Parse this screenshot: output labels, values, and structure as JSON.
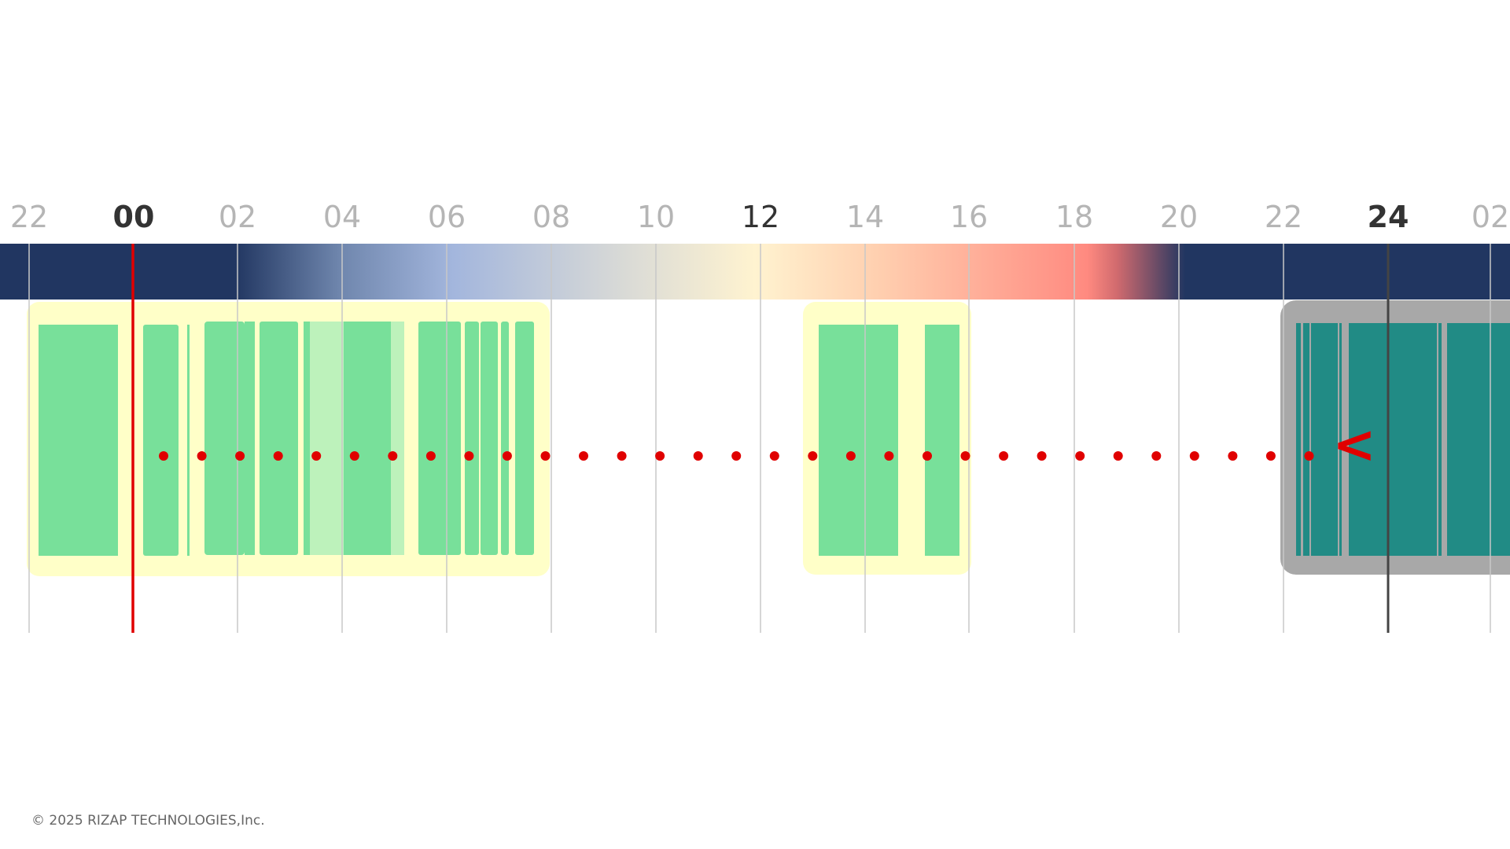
{
  "timeline": {
    "hour_labels": [
      "22",
      "00",
      "02",
      "04",
      "06",
      "08",
      "10",
      "12",
      "14",
      "16",
      "18",
      "20",
      "22",
      "24",
      "02"
    ],
    "major_labels": [
      "00",
      "24"
    ],
    "noon_label": "12",
    "sky_colors": {
      "night": "#213661",
      "dawn": "#a3b6dd",
      "midday": "#fff3d0",
      "evening": "#ff8a80"
    },
    "current_time_marker_color": "#e00000",
    "end_of_day_marker_color": "#444444",
    "return_arrow_glyph": "<",
    "return_arrow_color": "#e00000",
    "activity_colors": {
      "block_bg": "#ffffc8",
      "active": "#78e09a",
      "light": "#bdf2bb",
      "past_block_bg": "#a8a8a8",
      "past_active": "#218b85"
    }
  },
  "footer": {
    "copyright": "© 2025 RIZAP TECHNOLOGIES,Inc."
  }
}
